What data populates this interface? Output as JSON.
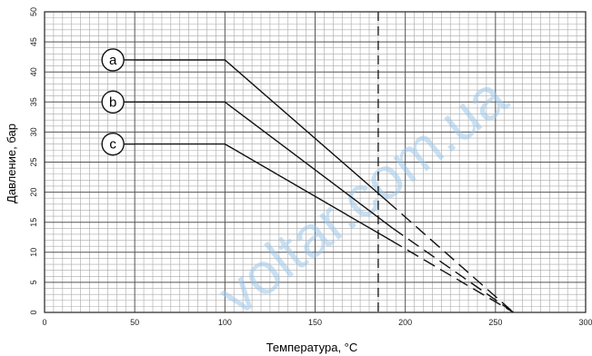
{
  "chart_data": {
    "type": "line",
    "title": "",
    "xlabel": "Температура, °C",
    "ylabel": "Давление, бар",
    "xlim": [
      0,
      300
    ],
    "ylim": [
      0,
      50
    ],
    "x_ticks": [
      0,
      50,
      100,
      150,
      200,
      250,
      300
    ],
    "y_ticks": [
      0,
      5,
      10,
      15,
      20,
      25,
      30,
      35,
      40,
      45,
      50
    ],
    "grid": true,
    "reference_line": {
      "x": 185,
      "style": "dashed"
    },
    "series": [
      {
        "name": "a",
        "solid": [
          [
            50,
            42
          ],
          [
            100,
            42
          ],
          [
            190,
            18.5
          ]
        ],
        "dashed": [
          [
            190,
            18.5
          ],
          [
            260,
            0
          ]
        ]
      },
      {
        "name": "b",
        "solid": [
          [
            50,
            35
          ],
          [
            100,
            35
          ],
          [
            193,
            14
          ]
        ],
        "dashed": [
          [
            193,
            14
          ],
          [
            260,
            0
          ]
        ]
      },
      {
        "name": "c",
        "solid": [
          [
            50,
            28
          ],
          [
            100,
            28
          ],
          [
            192,
            12
          ]
        ],
        "dashed": [
          [
            192,
            12
          ],
          [
            260,
            0
          ]
        ]
      }
    ]
  },
  "watermark": "voltar.com.ua"
}
